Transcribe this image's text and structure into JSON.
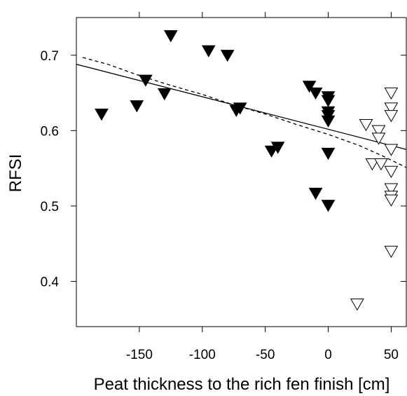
{
  "chart_data": {
    "type": "scatter",
    "xlabel": "Peat thickness to the rich fen finish [cm]",
    "ylabel": "RFSI",
    "xlim": [
      -200,
      62
    ],
    "ylim": [
      0.34,
      0.75
    ],
    "grid": false,
    "x_ticks": [
      -150,
      -100,
      -50,
      0,
      50
    ],
    "y_ticks": [
      0.4,
      0.5,
      0.6,
      0.7
    ],
    "x_tick_labels": [
      "-150",
      "-100",
      "-50",
      "0",
      "50"
    ],
    "y_tick_labels": [
      "0.4",
      "0.5",
      "0.6",
      "0.7"
    ],
    "series": [
      {
        "marker": "filled-down-triangle",
        "color": "#000000",
        "points": [
          {
            "x": -180,
            "y": 0.622
          },
          {
            "x": -152,
            "y": 0.633
          },
          {
            "x": -145,
            "y": 0.667
          },
          {
            "x": -130,
            "y": 0.649
          },
          {
            "x": -125,
            "y": 0.726
          },
          {
            "x": -95,
            "y": 0.706
          },
          {
            "x": -80,
            "y": 0.7
          },
          {
            "x": -73,
            "y": 0.627
          },
          {
            "x": -70,
            "y": 0.63
          },
          {
            "x": -45,
            "y": 0.573
          },
          {
            "x": -40,
            "y": 0.578
          },
          {
            "x": -15,
            "y": 0.659
          },
          {
            "x": -10,
            "y": 0.65
          },
          {
            "x": -10,
            "y": 0.517
          },
          {
            "x": 0,
            "y": 0.645
          },
          {
            "x": 0,
            "y": 0.64
          },
          {
            "x": 0,
            "y": 0.625
          },
          {
            "x": 0,
            "y": 0.62
          },
          {
            "x": 0,
            "y": 0.613
          },
          {
            "x": 0,
            "y": 0.57
          },
          {
            "x": 0,
            "y": 0.501
          }
        ]
      },
      {
        "marker": "open-down-triangle",
        "color": "#000000",
        "points": [
          {
            "x": 23,
            "y": 0.37
          },
          {
            "x": 30,
            "y": 0.608
          },
          {
            "x": 35,
            "y": 0.556
          },
          {
            "x": 40,
            "y": 0.6
          },
          {
            "x": 40,
            "y": 0.59
          },
          {
            "x": 42,
            "y": 0.556
          },
          {
            "x": 50,
            "y": 0.65
          },
          {
            "x": 50,
            "y": 0.63
          },
          {
            "x": 50,
            "y": 0.62
          },
          {
            "x": 50,
            "y": 0.575
          },
          {
            "x": 50,
            "y": 0.546
          },
          {
            "x": 50,
            "y": 0.523
          },
          {
            "x": 50,
            "y": 0.513
          },
          {
            "x": 50,
            "y": 0.508
          },
          {
            "x": 50,
            "y": 0.44
          }
        ]
      }
    ],
    "lines": [
      {
        "style": "solid",
        "color": "#000000",
        "points": [
          [
            -200,
            0.688
          ],
          [
            62,
            0.575
          ]
        ]
      },
      {
        "style": "dashed",
        "color": "#000000",
        "points": [
          [
            -195,
            0.697
          ],
          [
            -175,
            0.688
          ],
          [
            -150,
            0.673
          ],
          [
            -125,
            0.66
          ],
          [
            -100,
            0.648
          ],
          [
            -75,
            0.634
          ],
          [
            -50,
            0.622
          ],
          [
            -25,
            0.608
          ],
          [
            0,
            0.595
          ],
          [
            25,
            0.58
          ],
          [
            45,
            0.565
          ],
          [
            62,
            0.551
          ]
        ]
      }
    ]
  }
}
